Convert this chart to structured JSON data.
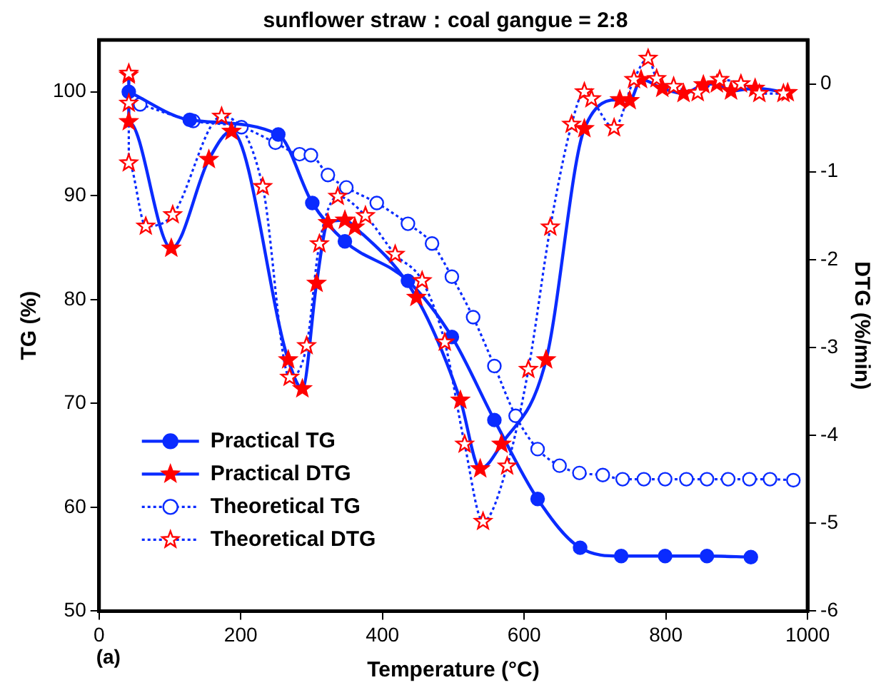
{
  "chart_data": {
    "type": "line",
    "title": "sunflower straw：coal gangue = 2:8",
    "xlabel": "Temperature (°C)",
    "ylabel": "TG (%)",
    "y2label": "DTG (%/min)",
    "xlim": [
      0,
      1000
    ],
    "xticks": [
      0,
      200,
      400,
      600,
      800,
      1000
    ],
    "ylim": [
      50,
      105
    ],
    "yticks": [
      50,
      60,
      70,
      80,
      90,
      100
    ],
    "y2lim": [
      -6,
      0.5
    ],
    "y2ticks": [
      -6,
      -5,
      -4,
      -3,
      -2,
      -1,
      0
    ],
    "grid": false,
    "legend": "bottom left",
    "annotations": [
      "(a)"
    ],
    "series": [
      {
        "name": "Practical TG",
        "color": "#0a2bff",
        "marker": "circle",
        "line_style": "solid",
        "x": [
          42,
          128,
          253,
          301,
          347,
          436,
          498,
          558,
          619,
          679,
          737,
          799,
          858,
          920
        ],
        "values": [
          100,
          97.3,
          95.9,
          89.3,
          85.6,
          81.8,
          76.4,
          68.4,
          60.8,
          56.1,
          55.3,
          55.3,
          55.3,
          55.2
        ]
      },
      {
        "name": "Practical DTG",
        "color": "#0a2bff",
        "colors": [
          "#ff0000",
          "#ff0000",
          "#ff0000",
          "#ff0000",
          "#ff0000",
          "#ff0000",
          "#ff0000",
          "#ff0000",
          "#ff0000",
          "#ff0000",
          "#ff0000",
          "#ff0000",
          "#ff0000",
          "#ff0000",
          "#ff0000",
          "#ff0000",
          "#ff0000",
          "#ff0000",
          "#ff0000",
          "#ff0000",
          "#ff0000",
          "#ff0000",
          "#ff0000",
          "#ff0000",
          "#ff0000",
          "#ff0000",
          "#ff0000"
        ],
        "axis": "y2",
        "marker": "star",
        "line_style": "solid",
        "x": [
          42,
          42,
          102,
          155,
          187,
          267,
          287,
          307,
          323,
          347,
          361,
          448,
          510,
          538,
          568,
          631,
          685,
          735,
          749,
          765,
          795,
          825,
          853,
          872,
          892,
          926,
          972
        ],
        "values": [
          0.1,
          -0.43,
          -1.87,
          -0.86,
          -0.54,
          -3.14,
          -3.47,
          -2.27,
          -1.58,
          -1.55,
          -1.63,
          -2.43,
          -3.6,
          -4.38,
          -4.1,
          -3.14,
          -0.51,
          -0.18,
          -0.19,
          0.05,
          -0.05,
          -0.11,
          -0.01,
          0,
          -0.08,
          -0.05,
          -0.1
        ]
      },
      {
        "name": "Theoretical TG",
        "color": "#0a2bff",
        "marker": "circle",
        "line_style": "dotted",
        "x": [
          58,
          133,
          201,
          249,
          283,
          299,
          323,
          349,
          392,
          436,
          470,
          498,
          528,
          558,
          588,
          619,
          650,
          678,
          711,
          739,
          769,
          799,
          829,
          858,
          888,
          918,
          947,
          980
        ],
        "values": [
          98.8,
          97.2,
          96.6,
          95.1,
          94,
          93.9,
          92,
          90.8,
          89.3,
          87.3,
          85.4,
          82.2,
          78.3,
          73.6,
          68.8,
          65.6,
          64,
          63.3,
          63.1,
          62.7,
          62.7,
          62.7,
          62.7,
          62.7,
          62.7,
          62.7,
          62.7,
          62.6
        ]
      },
      {
        "name": "Theoretical DTG",
        "color": "#0a2bff",
        "colors": [
          "#ff0000",
          "#ff0000",
          "#ff0000",
          "#ff0000",
          "#ff0000",
          "#ff0000",
          "#ff0000",
          "#ff0000",
          "#ff0000",
          "#ff0000",
          "#ff0000",
          "#ff0000",
          "#ff0000",
          "#ff0000",
          "#ff0000",
          "#ff0000",
          "#ff0000",
          "#ff0000",
          "#ff0000",
          "#ff0000",
          "#ff0000",
          "#ff0000",
          "#ff0000",
          "#ff0000",
          "#ff0000",
          "#ff0000",
          "#ff0000",
          "#ff0000",
          "#ff0000",
          "#ff0000",
          "#ff0000",
          "#ff0000",
          "#ff0000"
        ],
        "axis": "y2",
        "marker": "star",
        "line_style": "dotted",
        "x": [
          42,
          42,
          42,
          66,
          104,
          173,
          231,
          269,
          293,
          311,
          337,
          376,
          418,
          456,
          488,
          516,
          542,
          576,
          606,
          637,
          667,
          685,
          695,
          727,
          755,
          775,
          787,
          811,
          845,
          876,
          906,
          932,
          966
        ],
        "values": [
          0.12,
          -0.22,
          -0.9,
          -1.62,
          -1.49,
          -0.37,
          -1.17,
          -3.34,
          -2.98,
          -1.82,
          -1.28,
          -1.5,
          -1.94,
          -2.24,
          -2.94,
          -4.1,
          -4.98,
          -4.35,
          -3.25,
          -1.63,
          -0.46,
          -0.09,
          -0.17,
          -0.5,
          0.05,
          0.29,
          0.06,
          -0.03,
          -0.1,
          0.05,
          0,
          -0.11,
          -0.11
        ]
      }
    ]
  }
}
